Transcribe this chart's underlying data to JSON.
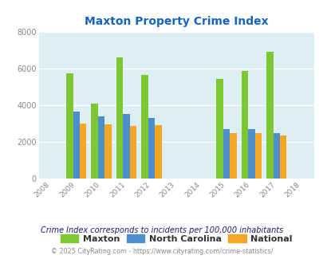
{
  "title": "Maxton Property Crime Index",
  "years": [
    2008,
    2009,
    2010,
    2011,
    2012,
    2013,
    2014,
    2015,
    2016,
    2017,
    2018
  ],
  "data_years": [
    2009,
    2010,
    2011,
    2012,
    2015,
    2016,
    2017
  ],
  "maxton": [
    5750,
    4100,
    6600,
    5650,
    5450,
    5850,
    6900
  ],
  "north_carolina": [
    3650,
    3400,
    3520,
    3300,
    2720,
    2720,
    2500
  ],
  "national": [
    3000,
    2950,
    2870,
    2900,
    2480,
    2480,
    2360
  ],
  "maxton_color": "#7dc832",
  "nc_color": "#4d8fcc",
  "national_color": "#f5a623",
  "bg_color": "#ddeef4",
  "title_color": "#1565c0",
  "ylim": [
    0,
    8000
  ],
  "yticks": [
    0,
    2000,
    4000,
    6000,
    8000
  ],
  "legend_labels": [
    "Maxton",
    "North Carolina",
    "National"
  ],
  "footnote1": "Crime Index corresponds to incidents per 100,000 inhabitants",
  "footnote2": "© 2025 CityRating.com - https://www.cityrating.com/crime-statistics/",
  "bar_width": 0.27,
  "figure_bg": "#ffffff",
  "tick_color": "#888888",
  "grid_color": "#ffffff",
  "footnote1_color": "#1a1a6e",
  "footnote2_color": "#888888"
}
